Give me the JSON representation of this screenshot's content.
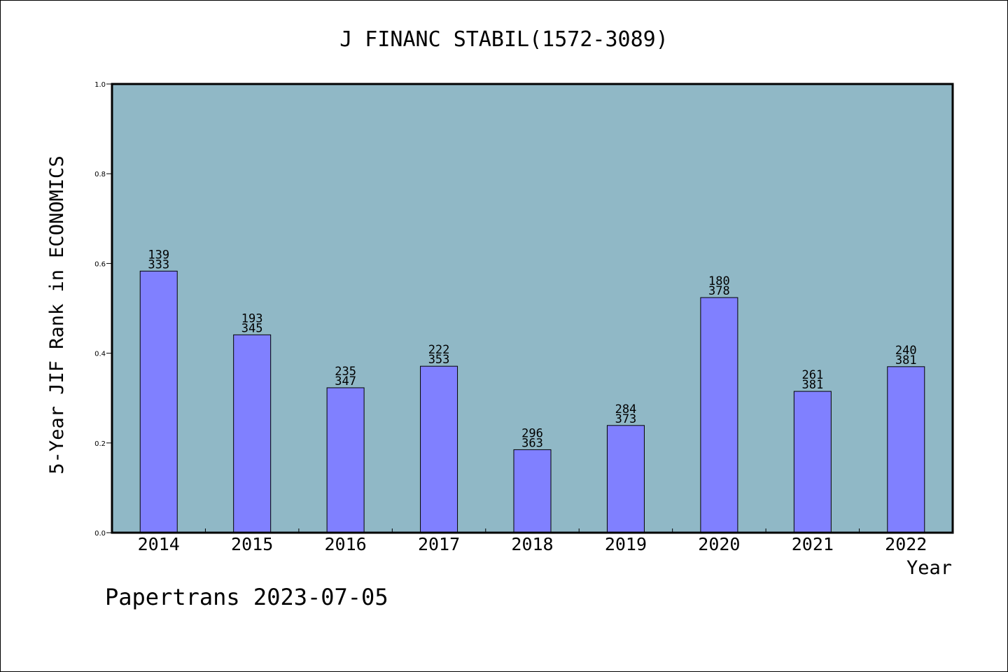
{
  "chart_data": {
    "type": "bar",
    "title": "J FINANC STABIL(1572-3089)",
    "xlabel": "Year",
    "ylabel": "5-Year JIF Rank in ECONOMICS",
    "ylim": [
      0,
      1.0
    ],
    "yticks": [
      "0.0",
      "0.2",
      "0.4",
      "0.6",
      "0.8",
      "1.0"
    ],
    "categories": [
      "2014",
      "2015",
      "2016",
      "2017",
      "2018",
      "2019",
      "2020",
      "2021",
      "2022"
    ],
    "values": [
      0.583,
      0.441,
      0.323,
      0.371,
      0.185,
      0.239,
      0.524,
      0.315,
      0.37
    ],
    "labels_top": [
      "139",
      "193",
      "235",
      "222",
      "296",
      "284",
      "180",
      "261",
      "240"
    ],
    "labels_bottom": [
      "333",
      "345",
      "347",
      "353",
      "363",
      "373",
      "378",
      "381",
      "381"
    ],
    "grid": false,
    "colors": {
      "plot_bg": "#90b8c6",
      "bar": "#8080ff",
      "bar_edge": "#000000"
    }
  },
  "footer": {
    "watermark": "Papertrans 2023-07-05"
  }
}
